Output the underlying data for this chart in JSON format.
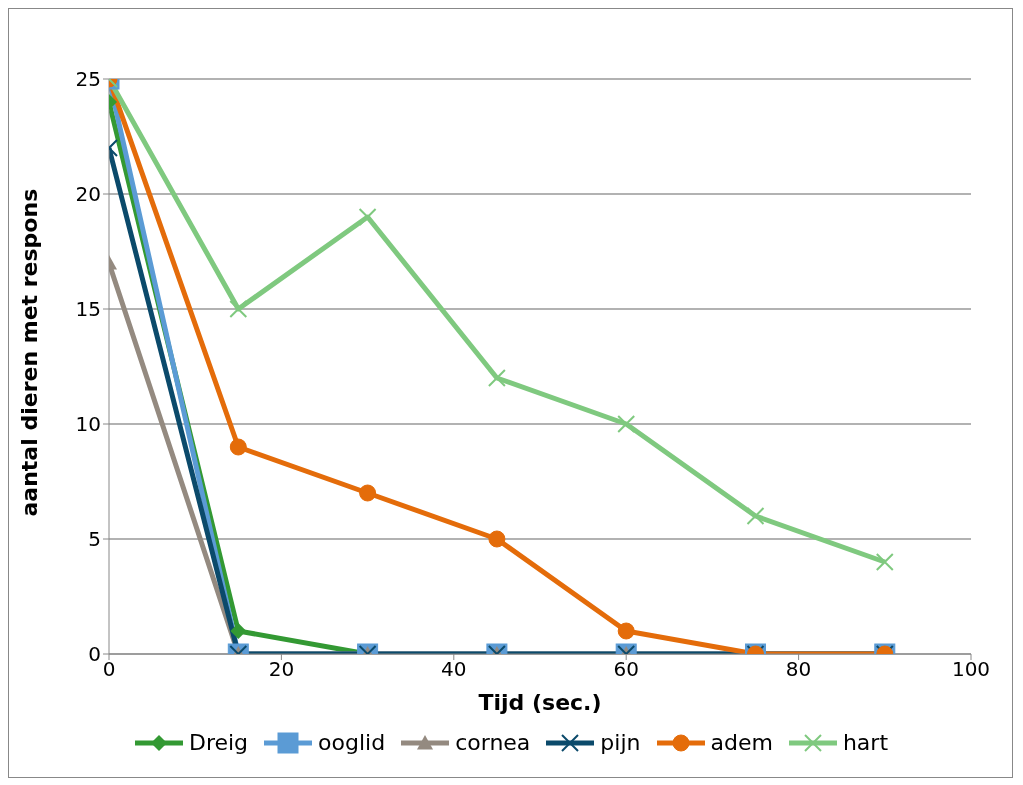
{
  "chart_data": {
    "type": "line",
    "xlabel": "Tijd (sec.)",
    "ylabel": "aantal dieren met respons",
    "x": [
      0,
      15,
      30,
      45,
      60,
      75,
      90
    ],
    "xlim": [
      0,
      100
    ],
    "xticks": [
      0,
      20,
      40,
      60,
      80,
      100
    ],
    "ylim": [
      0,
      25
    ],
    "yticks": [
      0,
      5,
      10,
      15,
      20,
      25
    ],
    "grid": "y",
    "legend": "bottom",
    "series": [
      {
        "name": "Dreig",
        "color": "#339933",
        "marker": "diamond",
        "values": [
          24,
          1,
          0,
          null,
          null,
          null,
          null
        ]
      },
      {
        "name": "ooglid",
        "color": "#5b9bd5",
        "marker": "square",
        "values": [
          25,
          0,
          0,
          0,
          0,
          0,
          0
        ]
      },
      {
        "name": "cornea",
        "color": "#948a80",
        "marker": "triangle",
        "values": [
          17,
          0,
          0,
          0,
          0,
          0,
          0
        ]
      },
      {
        "name": "pijn",
        "color": "#0b4a6b",
        "marker": "cross",
        "values": [
          22,
          0,
          0,
          0,
          0,
          0,
          0
        ]
      },
      {
        "name": "adem",
        "color": "#e46c0a",
        "marker": "circle",
        "values": [
          25,
          9,
          7,
          5,
          1,
          0,
          0
        ]
      },
      {
        "name": "hart",
        "color": "#7fc97f",
        "marker": "cross",
        "values": [
          25,
          15,
          19,
          12,
          10,
          6,
          4
        ]
      }
    ]
  }
}
